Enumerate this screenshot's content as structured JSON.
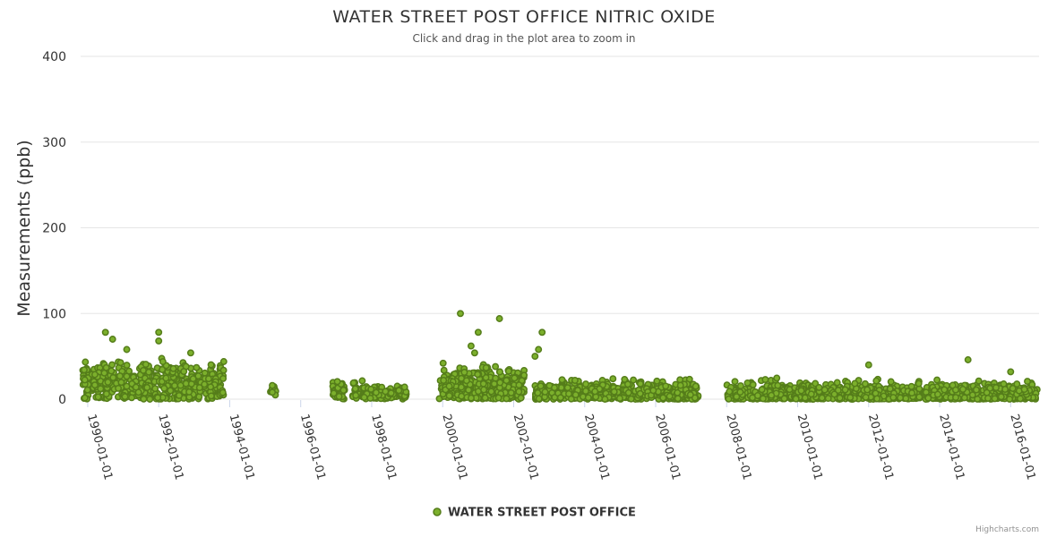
{
  "chart_data": {
    "type": "scatter",
    "title": "WATER STREET POST OFFICE NITRIC OXIDE",
    "subtitle": "Click and drag in the plot area to zoom in",
    "xlabel": "",
    "ylabel": "Measurements (ppb)",
    "xlim": [
      1989.8,
      2016.8
    ],
    "ylim": [
      0,
      400
    ],
    "yticks": [
      0,
      100,
      200,
      300,
      400
    ],
    "ytick_labels": [
      "0",
      "100",
      "200",
      "300",
      "400"
    ],
    "xticks": [
      1990,
      1992,
      1994,
      1996,
      1998,
      2000,
      2002,
      2004,
      2006,
      2008,
      2010,
      2012,
      2014,
      2016
    ],
    "xtick_labels": [
      "1990-01-01",
      "1992-01-01",
      "1994-01-01",
      "1996-01-01",
      "1998-01-01",
      "2000-01-01",
      "2002-01-01",
      "2004-01-01",
      "2006-01-01",
      "2008-01-01",
      "2010-01-01",
      "2012-01-01",
      "2014-01-01",
      "2016-01-01"
    ],
    "grid": true,
    "legend": "bottom-center",
    "series": [
      {
        "name": "WATER STREET POST OFFICE",
        "color": "#7cb02c",
        "outline": "#557d1a",
        "notable_points": [
          {
            "x": 1990.5,
            "y": 78
          },
          {
            "x": 1990.7,
            "y": 70
          },
          {
            "x": 1991.1,
            "y": 58
          },
          {
            "x": 1992.0,
            "y": 78
          },
          {
            "x": 1992.0,
            "y": 68
          },
          {
            "x": 1992.9,
            "y": 54
          },
          {
            "x": 1995.2,
            "y": 16
          },
          {
            "x": 1995.2,
            "y": 8
          },
          {
            "x": 2000.5,
            "y": 100
          },
          {
            "x": 2000.8,
            "y": 62
          },
          {
            "x": 2000.9,
            "y": 54
          },
          {
            "x": 2001.0,
            "y": 78
          },
          {
            "x": 2001.6,
            "y": 94
          },
          {
            "x": 2002.6,
            "y": 50
          },
          {
            "x": 2002.7,
            "y": 58
          },
          {
            "x": 2002.8,
            "y": 78
          },
          {
            "x": 2012.0,
            "y": 40
          },
          {
            "x": 2014.8,
            "y": 46
          },
          {
            "x": 2016.0,
            "y": 32
          }
        ],
        "density_segments": [
          {
            "start": 1989.85,
            "end": 1993.85,
            "median": 18,
            "spread": 22,
            "count": 520
          },
          {
            "start": 1995.15,
            "end": 1995.3,
            "median": 10,
            "spread": 6,
            "count": 8
          },
          {
            "start": 1996.9,
            "end": 1997.25,
            "median": 8,
            "spread": 12,
            "count": 40
          },
          {
            "start": 1997.45,
            "end": 1997.75,
            "median": 8,
            "spread": 14,
            "count": 30
          },
          {
            "start": 1997.75,
            "end": 1999.0,
            "median": 6,
            "spread": 8,
            "count": 120
          },
          {
            "start": 1999.9,
            "end": 2002.3,
            "median": 15,
            "spread": 20,
            "count": 340
          },
          {
            "start": 2002.6,
            "end": 2007.2,
            "median": 7,
            "spread": 14,
            "count": 520
          },
          {
            "start": 2008.0,
            "end": 2009.9,
            "median": 6,
            "spread": 14,
            "count": 240
          },
          {
            "start": 2009.9,
            "end": 2016.75,
            "median": 5,
            "spread": 14,
            "count": 760
          }
        ]
      }
    ]
  },
  "credits": "Highcharts.com"
}
